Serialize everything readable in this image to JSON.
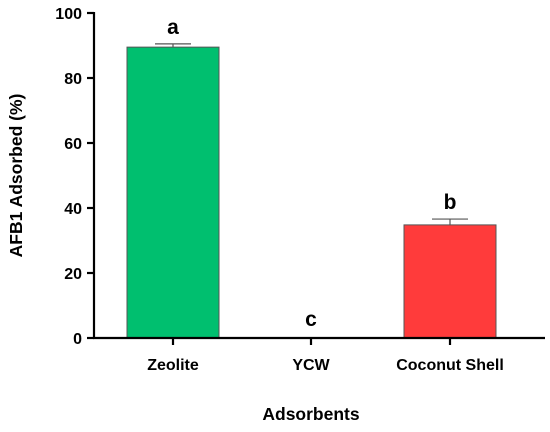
{
  "chart_data": {
    "type": "bar",
    "categories": [
      "Zeolite",
      "YCW",
      "Coconut Shell"
    ],
    "values": [
      89.5,
      0,
      34.8
    ],
    "error": [
      1.0,
      0,
      1.8
    ],
    "significance_letters": [
      "a",
      "c",
      "b"
    ],
    "colors": [
      "#00BF6F",
      "#00BF6F",
      "#FF3B3B"
    ],
    "bar_edge_color": "#555555",
    "xlabel": "Adsorbents",
    "ylabel": "AFB1 Adsorbed (%)",
    "ylim": [
      0,
      100
    ],
    "yticks": [
      0,
      20,
      40,
      60,
      80,
      100
    ],
    "grid": false
  }
}
